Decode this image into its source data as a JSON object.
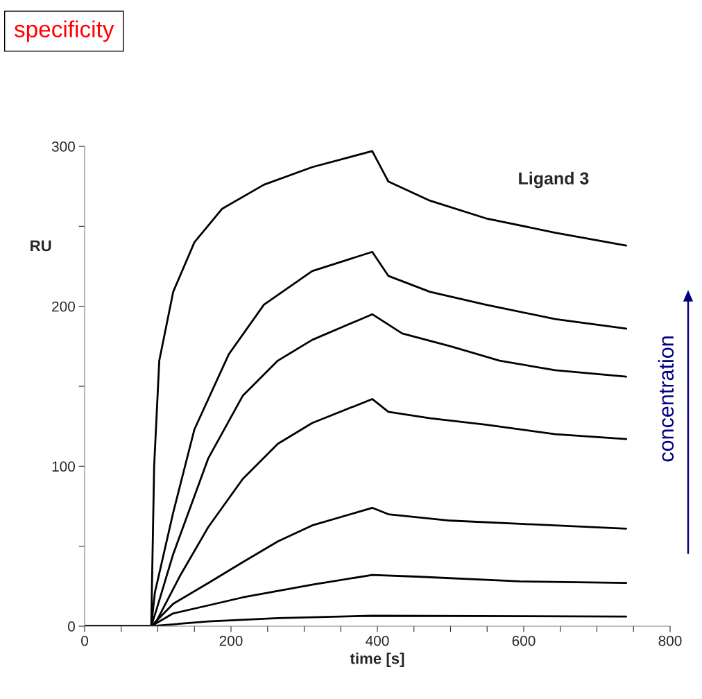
{
  "chart_data": {
    "type": "line",
    "title": "specificity",
    "xlabel": "time [s]",
    "ylabel": "RU",
    "annotations": [
      "Ligand 3",
      "concentration"
    ],
    "xlim": [
      0,
      800
    ],
    "ylim": [
      0,
      300
    ],
    "xticks": [
      0,
      {
        "value": 50,
        "label": null
      },
      {
        "value": 100,
        "label": null
      },
      {
        "value": 150,
        "label": null
      },
      200,
      {
        "value": 250,
        "label": null
      },
      {
        "value": 300,
        "label": null
      },
      {
        "value": 350,
        "label": null
      },
      400,
      {
        "value": 450,
        "label": null
      },
      {
        "value": 500,
        "label": null
      },
      {
        "value": 550,
        "label": null
      },
      600,
      {
        "value": 650,
        "label": null
      },
      {
        "value": 700,
        "label": null
      },
      {
        "value": 750,
        "label": null
      },
      800
    ],
    "yticks": [
      0,
      {
        "value": 50,
        "label": null
      },
      100,
      {
        "value": 150,
        "label": null
      },
      200,
      {
        "value": 250,
        "label": null
      },
      300
    ],
    "grid": false,
    "legend": false,
    "marker": "none",
    "line_style": "solid",
    "series": [
      {
        "color": "#000000",
        "x": [
          0,
          91,
          95,
          102,
          121,
          150,
          188,
          245,
          311,
          393,
          415,
          472,
          548,
          643,
          740
        ],
        "values": [
          0,
          0,
          100,
          166,
          209,
          240,
          261,
          276,
          287,
          297,
          278,
          266,
          255,
          246,
          238
        ]
      },
      {
        "color": "#000000",
        "x": [
          0,
          91,
          96,
          121,
          150,
          197,
          245,
          311,
          393,
          415,
          472,
          548,
          643,
          740
        ],
        "values": [
          0,
          0,
          21,
          71,
          123,
          170,
          201,
          222,
          234,
          219,
          209,
          201,
          192,
          186
        ]
      },
      {
        "color": "#000000",
        "x": [
          0,
          91,
          98,
          121,
          169,
          216,
          264,
          311,
          393,
          434,
          500,
          567,
          643,
          740
        ],
        "values": [
          0,
          0,
          10,
          45,
          105,
          144,
          166,
          179,
          195,
          183,
          175,
          166,
          160,
          156
        ]
      },
      {
        "color": "#000000",
        "x": [
          0,
          91,
          98,
          131,
          169,
          216,
          264,
          311,
          393,
          415,
          472,
          548,
          643,
          740
        ],
        "values": [
          0,
          0,
          3,
          32,
          62,
          92,
          114,
          127,
          142,
          134,
          130,
          126,
          120,
          117
        ]
      },
      {
        "color": "#000000",
        "x": [
          0,
          91,
          121,
          169,
          216,
          264,
          311,
          393,
          415,
          500,
          595,
          740
        ],
        "values": [
          0,
          0,
          14,
          27,
          40,
          53,
          63,
          74,
          70,
          66,
          64,
          61
        ]
      },
      {
        "color": "#000000",
        "x": [
          0,
          91,
          121,
          169,
          216,
          311,
          393,
          453,
          595,
          740
        ],
        "values": [
          0,
          0,
          8,
          13,
          18,
          26,
          32,
          31,
          28,
          27
        ]
      },
      {
        "color": "#000000",
        "x": [
          0,
          91,
          169,
          264,
          393,
          740
        ],
        "values": [
          0,
          0,
          3,
          5,
          6.5,
          6
        ]
      }
    ]
  }
}
